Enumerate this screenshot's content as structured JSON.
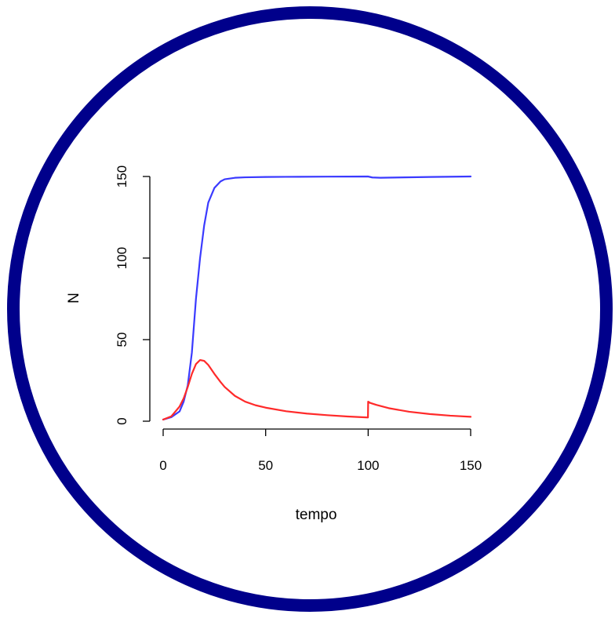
{
  "frame": {
    "ring_color": "#00008b"
  },
  "chart_data": {
    "type": "line",
    "title": "",
    "xlabel": "tempo",
    "ylabel": "N",
    "xlim": [
      0,
      150
    ],
    "ylim": [
      0,
      150
    ],
    "x_ticks": [
      0,
      50,
      100,
      150
    ],
    "y_ticks": [
      0,
      50,
      100,
      150
    ],
    "grid": false,
    "legend": "none",
    "series": [
      {
        "color": "#3a3aff",
        "points": [
          [
            0,
            1
          ],
          [
            4,
            2.5
          ],
          [
            8,
            6
          ],
          [
            10,
            12
          ],
          [
            12,
            22
          ],
          [
            14,
            42
          ],
          [
            16,
            75
          ],
          [
            18,
            100
          ],
          [
            20,
            120
          ],
          [
            22,
            134
          ],
          [
            25,
            143
          ],
          [
            28,
            147
          ],
          [
            30,
            148.3
          ],
          [
            35,
            149.2
          ],
          [
            40,
            149.5
          ],
          [
            50,
            149.7
          ],
          [
            60,
            149.8
          ],
          [
            80,
            149.9
          ],
          [
            99.9,
            150
          ],
          [
            102,
            149.4
          ],
          [
            106,
            149.2
          ],
          [
            115,
            149.4
          ],
          [
            130,
            149.7
          ],
          [
            150,
            150
          ]
        ]
      },
      {
        "color": "#ff2a2a",
        "points": [
          [
            0,
            1
          ],
          [
            4,
            3
          ],
          [
            8,
            9
          ],
          [
            10,
            14
          ],
          [
            12,
            21
          ],
          [
            14,
            29
          ],
          [
            16,
            35
          ],
          [
            18,
            37.5
          ],
          [
            20,
            37
          ],
          [
            22,
            34.5
          ],
          [
            25,
            29
          ],
          [
            28,
            24
          ],
          [
            30,
            21
          ],
          [
            35,
            15.5
          ],
          [
            40,
            12
          ],
          [
            45,
            9.8
          ],
          [
            50,
            8.3
          ],
          [
            60,
            6.1
          ],
          [
            70,
            4.7
          ],
          [
            80,
            3.7
          ],
          [
            90,
            2.9
          ],
          [
            99.9,
            2.3
          ],
          [
            100,
            12
          ],
          [
            101,
            11.2
          ],
          [
            104,
            10
          ],
          [
            110,
            8
          ],
          [
            120,
            5.8
          ],
          [
            130,
            4.4
          ],
          [
            140,
            3.4
          ],
          [
            150,
            2.7
          ]
        ]
      }
    ]
  }
}
